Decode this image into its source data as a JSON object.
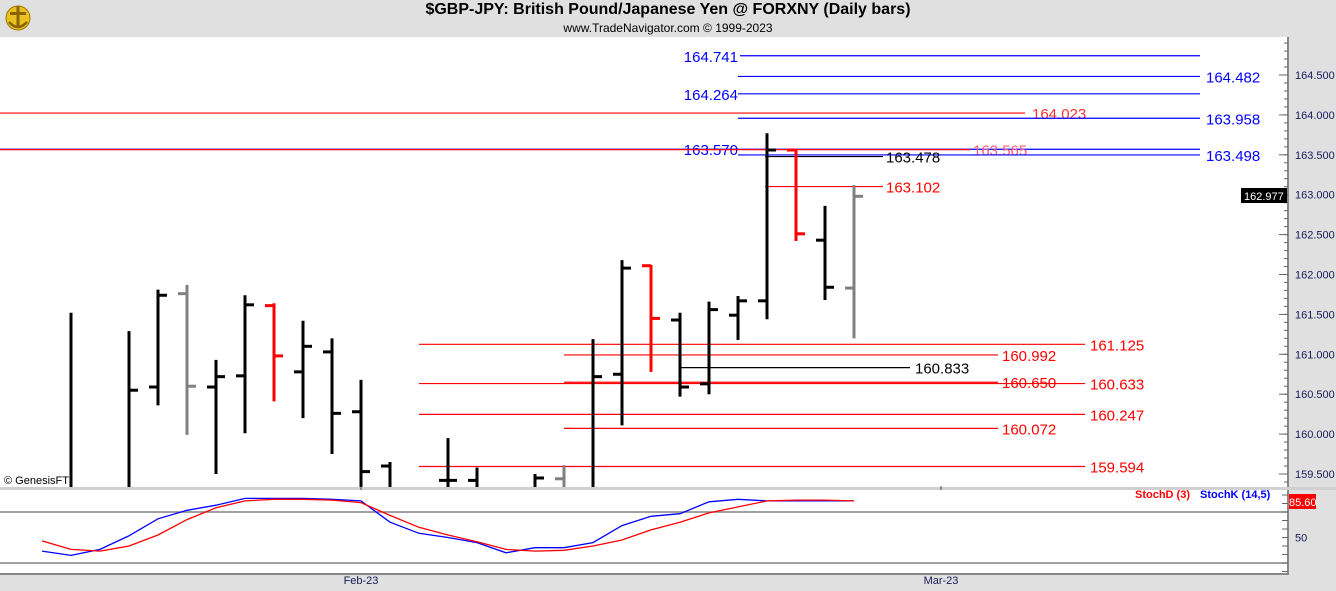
{
  "header": {
    "title": "$GBP-JPY:  British Pound/Japanese Yen @ FORXNY  (Daily bars)",
    "subtitle": "www.TradeNavigator.com © 1999-2023",
    "logo_icon": "gold-anchor-logo-icon"
  },
  "watermark": "© GenesisFT",
  "colors": {
    "up": "#000000",
    "down": "#ff0000",
    "neutral": "#808080",
    "blue": "#0000ff",
    "red": "#ff0000",
    "black": "#000000"
  },
  "chart_data": [
    {
      "type": "ohlc",
      "title": "$GBP-JPY: British Pound/Japanese Yen @ FORXNY (Daily bars)",
      "ylim": [
        159.35,
        165.15
      ],
      "y_ticks": [
        "164.500",
        "164.000",
        "163.500",
        "163.000",
        "162.500",
        "162.000",
        "161.500",
        "161.000",
        "160.500",
        "160.000",
        "159.500"
      ],
      "y_tick_values": [
        164.5,
        164.0,
        163.5,
        163.0,
        162.5,
        162.0,
        161.5,
        161.0,
        160.5,
        160.0,
        159.5
      ],
      "x_labels": [
        {
          "slot": 11,
          "label": "Feb-23"
        },
        {
          "slot": 31,
          "label": "Mar-23"
        }
      ],
      "last_price": "162.977",
      "bars": [
        {
          "slot": 1,
          "o": null,
          "h": 161.52,
          "l": 159.0,
          "c": null,
          "color": "up"
        },
        {
          "slot": 3,
          "o": null,
          "h": 161.29,
          "l": 159.0,
          "c": 160.55,
          "color": "up"
        },
        {
          "slot": 4,
          "o": 160.59,
          "h": 161.81,
          "l": 160.36,
          "c": 161.74,
          "color": "up"
        },
        {
          "slot": 5,
          "o": 161.76,
          "h": 161.87,
          "l": 159.99,
          "c": 160.6,
          "color": "neutral"
        },
        {
          "slot": 6,
          "o": 160.59,
          "h": 160.93,
          "l": 159.5,
          "c": 160.72,
          "color": "up"
        },
        {
          "slot": 7,
          "o": 160.73,
          "h": 161.74,
          "l": 160.01,
          "c": 161.62,
          "color": "up"
        },
        {
          "slot": 8,
          "o": 161.61,
          "h": 161.64,
          "l": 160.41,
          "c": 160.98,
          "color": "down"
        },
        {
          "slot": 9,
          "o": 160.78,
          "h": 161.42,
          "l": 160.2,
          "c": 161.1,
          "color": "up"
        },
        {
          "slot": 10,
          "o": 161.03,
          "h": 161.2,
          "l": 159.75,
          "c": 160.26,
          "color": "up"
        },
        {
          "slot": 11,
          "o": 160.28,
          "h": 160.68,
          "l": 159.0,
          "c": 159.53,
          "color": "up"
        },
        {
          "slot": 12,
          "o": 159.6,
          "h": 159.65,
          "l": 159.0,
          "c": null,
          "color": "up"
        },
        {
          "slot": 14,
          "o": 159.42,
          "h": 159.95,
          "l": 159.0,
          "c": 159.42,
          "color": "up"
        },
        {
          "slot": 15,
          "o": 159.42,
          "h": 159.58,
          "l": 159.0,
          "c": null,
          "color": "up"
        },
        {
          "slot": 17,
          "o": null,
          "h": 159.5,
          "l": 159.0,
          "c": 159.45,
          "color": "up"
        },
        {
          "slot": 18,
          "o": 159.44,
          "h": 159.61,
          "l": 159.0,
          "c": null,
          "color": "neutral"
        },
        {
          "slot": 19,
          "o": null,
          "h": 161.19,
          "l": 159.0,
          "c": 160.72,
          "color": "up"
        },
        {
          "slot": 20,
          "o": 160.75,
          "h": 162.18,
          "l": 160.11,
          "c": 162.08,
          "color": "up"
        },
        {
          "slot": 21,
          "o": 162.11,
          "h": 162.12,
          "l": 160.78,
          "c": 161.45,
          "color": "down"
        },
        {
          "slot": 22,
          "o": 161.43,
          "h": 161.52,
          "l": 160.47,
          "c": 160.59,
          "color": "up"
        },
        {
          "slot": 23,
          "o": 160.63,
          "h": 161.66,
          "l": 160.5,
          "c": 161.56,
          "color": "up"
        },
        {
          "slot": 24,
          "o": 161.49,
          "h": 161.73,
          "l": 161.18,
          "c": 161.67,
          "color": "up"
        },
        {
          "slot": 25,
          "o": 161.67,
          "h": 163.77,
          "l": 161.44,
          "c": 163.56,
          "color": "up"
        },
        {
          "slot": 26,
          "o": 163.56,
          "h": 163.56,
          "l": 162.42,
          "c": 162.51,
          "color": "down"
        },
        {
          "slot": 27,
          "o": 162.43,
          "h": 162.86,
          "l": 161.68,
          "c": 161.84,
          "color": "up"
        },
        {
          "slot": 28,
          "o": 161.83,
          "h": 163.12,
          "l": 161.2,
          "c": 162.98,
          "color": "neutral"
        }
      ],
      "levels": [
        {
          "value": 164.741,
          "label": "164.741",
          "color": "blue"
        },
        {
          "value": 164.482,
          "label": "164.482",
          "color": "blue"
        },
        {
          "value": 164.264,
          "label": "164.264",
          "color": "blue"
        },
        {
          "value": 164.023,
          "label": "164.023",
          "color": "red"
        },
        {
          "value": 163.958,
          "label": "163.958",
          "color": "blue"
        },
        {
          "value": 163.57,
          "label": "163.570",
          "color": "blue"
        },
        {
          "value": 163.565,
          "label": "163.565",
          "color": "red"
        },
        {
          "value": 163.498,
          "label": "163.498",
          "color": "blue"
        },
        {
          "value": 163.478,
          "label": "163.478",
          "color": "black"
        },
        {
          "value": 163.102,
          "label": "163.102",
          "color": "red"
        },
        {
          "value": 161.125,
          "label": "161.125",
          "color": "red"
        },
        {
          "value": 160.992,
          "label": "160.992",
          "color": "red"
        },
        {
          "value": 160.833,
          "label": "160.833",
          "color": "black"
        },
        {
          "value": 160.65,
          "label": "160.650",
          "color": "red"
        },
        {
          "value": 160.633,
          "label": "160.633",
          "color": "red"
        },
        {
          "value": 160.247,
          "label": "160.247",
          "color": "red"
        },
        {
          "value": 160.072,
          "label": "160.072",
          "color": "red"
        },
        {
          "value": 159.594,
          "label": "159.594",
          "color": "red"
        }
      ]
    },
    {
      "type": "line",
      "title": "Stochastic",
      "ylim": [
        0,
        100
      ],
      "y_ticks": [
        "50"
      ],
      "y_tick_values": [
        50
      ],
      "guide_levels": [
        80,
        20
      ],
      "last_value": "85.60",
      "legend": [
        {
          "name": "StochD (3)",
          "color": "red"
        },
        {
          "name": "StochK (14,5)",
          "color": "blue"
        }
      ],
      "slots": [
        0,
        1,
        2,
        3,
        4,
        5,
        6,
        7,
        8,
        9,
        10,
        11,
        12,
        13,
        14,
        15,
        16,
        17,
        18,
        19,
        20,
        21,
        22,
        23,
        24,
        25,
        26,
        27,
        28
      ],
      "series": [
        {
          "name": "StochK (14,5)",
          "color": "blue",
          "values": [
            34,
            29,
            36,
            52,
            72,
            82,
            88,
            96,
            96,
            96,
            95,
            93,
            68,
            55,
            50,
            44,
            32,
            38,
            38,
            44,
            64,
            75,
            78,
            92,
            95,
            93,
            93,
            93,
            93
          ]
        },
        {
          "name": "StochD (3)",
          "color": "red",
          "values": [
            46,
            36,
            34,
            40,
            53,
            71,
            85,
            93,
            95,
            95,
            94,
            91,
            76,
            62,
            53,
            45,
            36,
            34,
            35,
            40,
            47,
            59,
            68,
            79,
            86,
            93,
            94,
            94,
            93
          ]
        }
      ]
    }
  ]
}
